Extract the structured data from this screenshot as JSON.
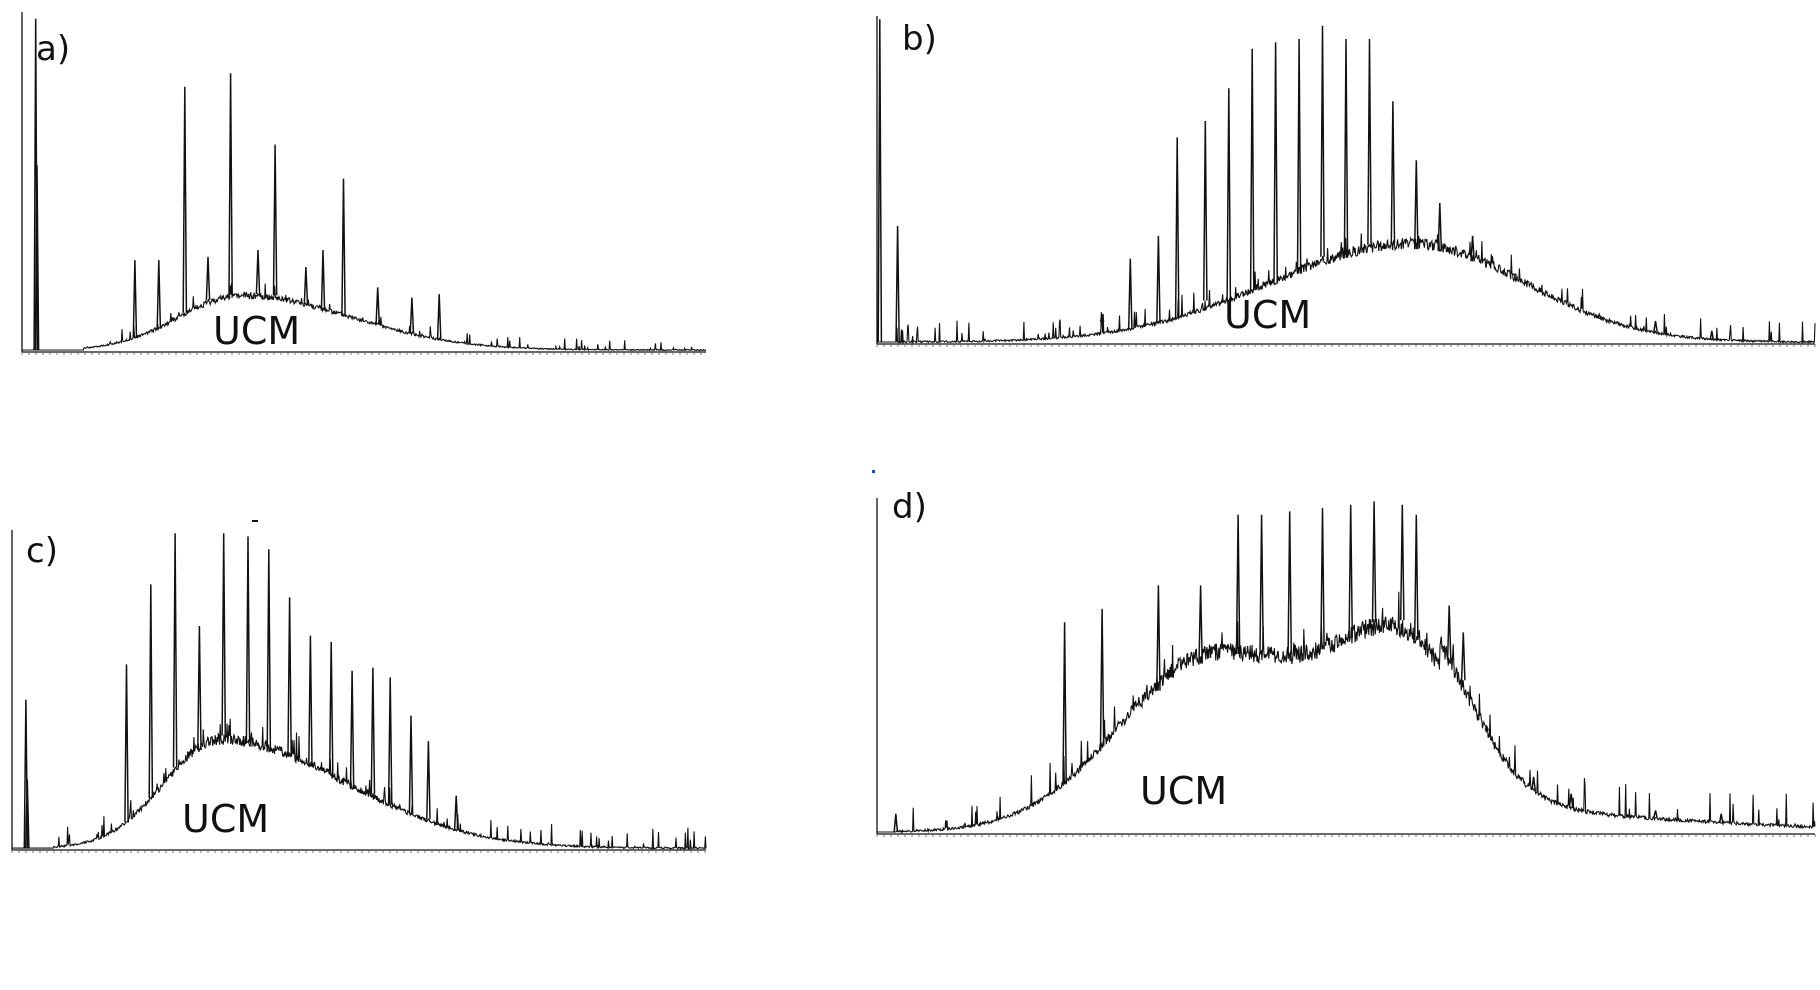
{
  "chart_data": [
    {
      "type": "line",
      "panel_label": "a)",
      "annotation": "UCM",
      "title": "",
      "xlabel": "",
      "ylabel": "",
      "grid": false,
      "hump": {
        "center": 0.32,
        "height": 0.16,
        "left_width": 0.09,
        "right_width": 0.16
      },
      "baseline_start": 0.09,
      "noise": 0.016,
      "peaks": [
        {
          "x": 0.02,
          "y": 0.98
        },
        {
          "x": 0.022,
          "y": 0.55
        },
        {
          "x": 0.165,
          "y": 0.27
        },
        {
          "x": 0.2,
          "y": 0.27
        },
        {
          "x": 0.238,
          "y": 0.78
        },
        {
          "x": 0.272,
          "y": 0.28
        },
        {
          "x": 0.305,
          "y": 0.82
        },
        {
          "x": 0.345,
          "y": 0.3
        },
        {
          "x": 0.37,
          "y": 0.61
        },
        {
          "x": 0.415,
          "y": 0.25
        },
        {
          "x": 0.44,
          "y": 0.3
        },
        {
          "x": 0.47,
          "y": 0.51
        },
        {
          "x": 0.52,
          "y": 0.19
        },
        {
          "x": 0.57,
          "y": 0.16
        },
        {
          "x": 0.61,
          "y": 0.17
        }
      ]
    },
    {
      "type": "line",
      "panel_label": "b)",
      "annotation": "UCM",
      "title": "",
      "xlabel": "",
      "ylabel": "",
      "grid": false,
      "hump": {
        "center": 0.57,
        "height": 0.3,
        "left_width": 0.15,
        "right_width": 0.12
      },
      "baseline_start": 0.02,
      "noise": 0.03,
      "peaks": [
        {
          "x": 0.003,
          "y": 0.99
        },
        {
          "x": 0.022,
          "y": 0.36
        },
        {
          "x": 0.24,
          "y": 0.09
        },
        {
          "x": 0.27,
          "y": 0.26
        },
        {
          "x": 0.3,
          "y": 0.33
        },
        {
          "x": 0.32,
          "y": 0.63
        },
        {
          "x": 0.35,
          "y": 0.68
        },
        {
          "x": 0.375,
          "y": 0.78
        },
        {
          "x": 0.4,
          "y": 0.9
        },
        {
          "x": 0.425,
          "y": 0.92
        },
        {
          "x": 0.45,
          "y": 0.93
        },
        {
          "x": 0.475,
          "y": 0.97
        },
        {
          "x": 0.5,
          "y": 0.93
        },
        {
          "x": 0.525,
          "y": 0.93
        },
        {
          "x": 0.55,
          "y": 0.74
        },
        {
          "x": 0.575,
          "y": 0.56
        },
        {
          "x": 0.6,
          "y": 0.43
        },
        {
          "x": 0.635,
          "y": 0.33
        },
        {
          "x": 0.68,
          "y": 0.21
        },
        {
          "x": 0.72,
          "y": 0.14
        },
        {
          "x": 0.77,
          "y": 0.09
        },
        {
          "x": 0.83,
          "y": 0.07
        },
        {
          "x": 0.89,
          "y": 0.04
        }
      ]
    },
    {
      "type": "line",
      "panel_label": "c)",
      "annotation": "UCM",
      "title": "",
      "xlabel": "",
      "ylabel": "",
      "grid": false,
      "hump": {
        "center": 0.3,
        "height": 0.34,
        "left_width": 0.08,
        "right_width": 0.18
      },
      "baseline_start": 0.06,
      "noise": 0.03,
      "peaks": [
        {
          "x": 0.02,
          "y": 0.47
        },
        {
          "x": 0.022,
          "y": 0.22
        },
        {
          "x": 0.165,
          "y": 0.58
        },
        {
          "x": 0.2,
          "y": 0.83
        },
        {
          "x": 0.235,
          "y": 0.99
        },
        {
          "x": 0.27,
          "y": 0.7
        },
        {
          "x": 0.305,
          "y": 0.99
        },
        {
          "x": 0.34,
          "y": 0.98
        },
        {
          "x": 0.37,
          "y": 0.94
        },
        {
          "x": 0.4,
          "y": 0.79
        },
        {
          "x": 0.43,
          "y": 0.67
        },
        {
          "x": 0.46,
          "y": 0.65
        },
        {
          "x": 0.49,
          "y": 0.56
        },
        {
          "x": 0.52,
          "y": 0.57
        },
        {
          "x": 0.545,
          "y": 0.54
        },
        {
          "x": 0.575,
          "y": 0.42
        },
        {
          "x": 0.6,
          "y": 0.34
        },
        {
          "x": 0.64,
          "y": 0.17
        }
      ]
    },
    {
      "type": "line",
      "panel_label": "d)",
      "annotation": "UCM",
      "title": "",
      "xlabel": "",
      "ylabel": "",
      "grid": false,
      "hump": {
        "center": 0.36,
        "height": 0.53,
        "left_width": 0.1,
        "right_width": 0.14
      },
      "second_hump": {
        "center": 0.57,
        "height": 0.42,
        "left_width": 0.07,
        "right_width": 0.06
      },
      "tail": 0.07,
      "baseline_start": 0.02,
      "noise": 0.045,
      "peaks": [
        {
          "x": 0.02,
          "y": 0.06
        },
        {
          "x": 0.2,
          "y": 0.63
        },
        {
          "x": 0.24,
          "y": 0.67
        },
        {
          "x": 0.3,
          "y": 0.74
        },
        {
          "x": 0.345,
          "y": 0.74
        },
        {
          "x": 0.385,
          "y": 0.95
        },
        {
          "x": 0.41,
          "y": 0.95
        },
        {
          "x": 0.44,
          "y": 0.96
        },
        {
          "x": 0.475,
          "y": 0.97
        },
        {
          "x": 0.505,
          "y": 0.98
        },
        {
          "x": 0.53,
          "y": 0.99
        },
        {
          "x": 0.56,
          "y": 0.98
        },
        {
          "x": 0.575,
          "y": 0.95
        },
        {
          "x": 0.61,
          "y": 0.68
        },
        {
          "x": 0.625,
          "y": 0.6
        },
        {
          "x": 0.65,
          "y": 0.32
        },
        {
          "x": 0.7,
          "y": 0.17
        },
        {
          "x": 0.74,
          "y": 0.12
        },
        {
          "x": 0.83,
          "y": 0.07
        },
        {
          "x": 0.9,
          "y": 0.06
        }
      ]
    }
  ]
}
